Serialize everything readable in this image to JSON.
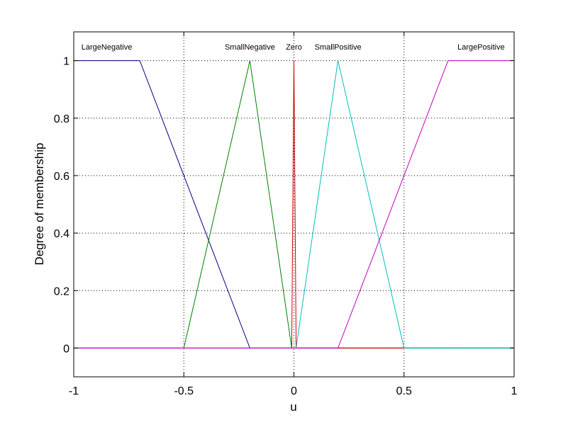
{
  "chart_data": {
    "type": "line",
    "title": "",
    "xlabel": "u",
    "ylabel": "Degree of membership",
    "xlim": [
      -1,
      1
    ],
    "ylim": [
      -0.1,
      1.1
    ],
    "xticks": [
      -1,
      -0.5,
      0,
      0.5,
      1
    ],
    "xtick_labels": [
      "-1",
      "-0.5",
      "0",
      "0.5",
      "1"
    ],
    "yticks": [
      0,
      0.2,
      0.4,
      0.6,
      0.8,
      1
    ],
    "ytick_labels": [
      "0",
      "0.2",
      "0.4",
      "0.6",
      "0.8",
      "1"
    ],
    "grid": true,
    "series": [
      {
        "name": "LargeNegative",
        "color": "#00007f",
        "label_x": -0.85,
        "x": [
          -1,
          -0.7,
          -0.2,
          1
        ],
        "y": [
          1,
          1,
          0,
          0
        ]
      },
      {
        "name": "SmallNegative",
        "color": "#007f00",
        "label_x": -0.2,
        "x": [
          -1,
          -0.5,
          -0.2,
          -0.01,
          1
        ],
        "y": [
          0,
          0,
          1,
          0,
          0
        ]
      },
      {
        "name": "Zero",
        "color": "#cc0000",
        "label_x": 0,
        "x": [
          -1,
          -0.01,
          0,
          0.01,
          1
        ],
        "y": [
          0,
          0,
          1,
          0,
          0
        ]
      },
      {
        "name": "SmallPositive",
        "color": "#00bfbf",
        "label_x": 0.2,
        "x": [
          -1,
          0.01,
          0.2,
          0.5,
          1
        ],
        "y": [
          0,
          0,
          1,
          0,
          0
        ]
      },
      {
        "name": "LargePositive",
        "color": "#bf00bf",
        "label_x": 0.85,
        "x": [
          -1,
          0.2,
          0.7,
          1
        ],
        "y": [
          0,
          0,
          1,
          1
        ]
      }
    ]
  }
}
